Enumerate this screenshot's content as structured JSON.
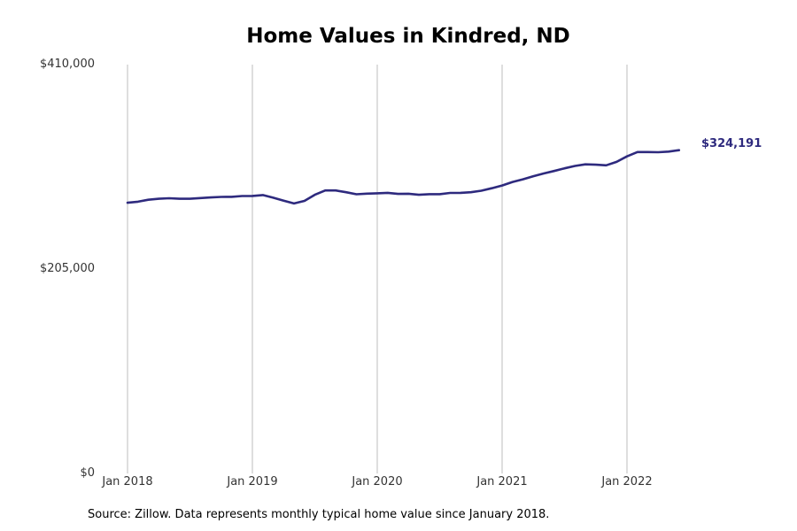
{
  "chart_data": {
    "type": "line",
    "title": "Home Values in Kindred, ND",
    "xlabel": "",
    "ylabel": "",
    "source": "Source: Zillow. Data represents monthly typical home value since January 2018.",
    "line_color": "#2e2a7e",
    "grid": "vertical",
    "ylim": [
      0,
      410000
    ],
    "yticks": [
      {
        "value": 0,
        "label": "$0"
      },
      {
        "value": 205000,
        "label": "$205,000"
      },
      {
        "value": 410000,
        "label": "$410,000"
      }
    ],
    "xticks": [
      {
        "value": "2018-01",
        "label": "Jan 2018"
      },
      {
        "value": "2019-01",
        "label": "Jan 2019"
      },
      {
        "value": "2020-01",
        "label": "Jan 2020"
      },
      {
        "value": "2021-01",
        "label": "Jan 2021"
      },
      {
        "value": "2022-01",
        "label": "Jan 2022"
      }
    ],
    "end_label": "$324,191",
    "x": [
      "2018-01",
      "2018-02",
      "2018-03",
      "2018-04",
      "2018-05",
      "2018-06",
      "2018-07",
      "2018-08",
      "2018-09",
      "2018-10",
      "2018-11",
      "2018-12",
      "2019-01",
      "2019-02",
      "2019-03",
      "2019-04",
      "2019-05",
      "2019-06",
      "2019-07",
      "2019-08",
      "2019-09",
      "2019-10",
      "2019-11",
      "2019-12",
      "2020-01",
      "2020-02",
      "2020-03",
      "2020-04",
      "2020-05",
      "2020-06",
      "2020-07",
      "2020-08",
      "2020-09",
      "2020-10",
      "2020-11",
      "2020-12",
      "2021-01",
      "2021-02",
      "2021-03",
      "2021-04",
      "2021-05",
      "2021-06",
      "2021-07",
      "2021-08",
      "2021-09",
      "2021-10",
      "2021-11",
      "2021-12",
      "2022-01",
      "2022-02",
      "2022-03",
      "2022-04",
      "2022-05",
      "2022-06"
    ],
    "values": [
      271500,
      272500,
      274500,
      275500,
      276000,
      275500,
      275500,
      276200,
      276800,
      277300,
      277400,
      278200,
      278300,
      279200,
      276500,
      273500,
      270800,
      273300,
      279500,
      283800,
      283800,
      282000,
      280000,
      280600,
      281000,
      281400,
      280300,
      280500,
      279500,
      280100,
      280100,
      281300,
      281400,
      282000,
      283500,
      286000,
      288800,
      292300,
      295000,
      298100,
      300800,
      303300,
      306000,
      308400,
      310000,
      309600,
      309000,
      312500,
      318000,
      322300,
      322300,
      322100,
      322800,
      324191
    ]
  }
}
